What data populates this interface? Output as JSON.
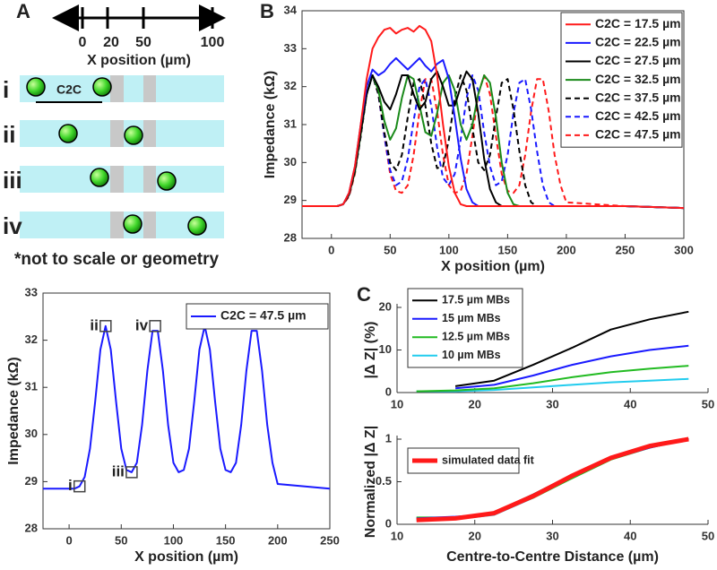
{
  "panel_labels": [
    "A",
    "B",
    "C"
  ],
  "diagram": {
    "axis_ticks": [
      "0",
      "20",
      "50",
      "100"
    ],
    "axis_label": "X position (µm)",
    "rows": [
      "i",
      "ii",
      "iii",
      "iv"
    ],
    "c2c_label": "C2C",
    "footnote": "*not to scale or geometry"
  },
  "chart_data": [
    {
      "type": "line",
      "xlabel": "X position (µm)",
      "ylabel": "Impedance (kΩ)",
      "xlim": [
        -25,
        300
      ],
      "ylim": [
        28,
        34
      ],
      "xticks": [
        0,
        50,
        100,
        150,
        200,
        250,
        300
      ],
      "yticks": [
        28,
        29,
        30,
        31,
        32,
        33,
        34
      ],
      "legend": "upper right",
      "x": [
        -25,
        -10,
        0,
        5,
        10,
        15,
        20,
        25,
        30,
        35,
        40,
        45,
        50,
        55,
        60,
        65,
        70,
        75,
        80,
        85,
        90,
        95,
        100,
        105,
        110,
        115,
        120,
        125,
        130,
        135,
        140,
        145,
        150,
        155,
        160,
        165,
        170,
        175,
        180,
        185,
        190,
        195,
        200,
        250,
        300
      ],
      "series": [
        {
          "name": "C2C = 17.5 µm",
          "color": "#ff1a1a",
          "linestyle": "solid",
          "values": [
            28.85,
            28.85,
            28.85,
            28.85,
            28.9,
            29.2,
            29.9,
            31.0,
            32.2,
            33.0,
            33.3,
            33.5,
            33.55,
            33.4,
            33.5,
            33.55,
            33.45,
            33.6,
            33.5,
            33.2,
            32.3,
            31.0,
            29.9,
            29.2,
            28.9,
            28.85,
            28.85,
            28.85,
            28.85,
            28.85,
            28.85,
            28.85,
            28.85,
            28.85,
            28.85,
            28.85,
            28.85,
            28.85,
            28.85,
            28.85,
            28.85,
            28.85,
            28.85,
            28.85,
            28.8
          ]
        },
        {
          "name": "C2C = 22.5 µm",
          "color": "#1a1aff",
          "linestyle": "solid",
          "values": [
            28.85,
            28.85,
            28.85,
            28.85,
            28.9,
            29.2,
            29.9,
            31.0,
            32.0,
            32.45,
            32.3,
            32.4,
            32.6,
            32.75,
            32.6,
            32.45,
            32.6,
            32.75,
            32.55,
            32.4,
            32.6,
            32.7,
            32.2,
            31.2,
            30.1,
            29.3,
            28.95,
            28.85,
            28.85,
            28.85,
            28.85,
            28.85,
            28.85,
            28.85,
            28.85,
            28.85,
            28.85,
            28.85,
            28.85,
            28.85,
            28.85,
            28.85,
            28.85,
            28.85,
            28.8
          ]
        },
        {
          "name": "C2C = 27.5 µm",
          "color": "#000000",
          "linestyle": "solid",
          "values": [
            28.85,
            28.85,
            28.85,
            28.85,
            28.9,
            29.15,
            29.8,
            30.8,
            31.8,
            32.3,
            32.0,
            31.6,
            31.4,
            31.8,
            32.3,
            32.3,
            31.8,
            31.4,
            31.6,
            32.2,
            32.4,
            32.0,
            31.5,
            31.5,
            32.0,
            32.4,
            32.2,
            31.3,
            30.1,
            29.3,
            28.95,
            28.85,
            28.85,
            28.85,
            28.85,
            28.85,
            28.85,
            28.85,
            28.85,
            28.85,
            28.85,
            28.85,
            28.85,
            28.85,
            28.8
          ]
        },
        {
          "name": "C2C = 32.5 µm",
          "color": "#1a8a1a",
          "linestyle": "solid",
          "values": [
            28.85,
            28.85,
            28.85,
            28.85,
            28.9,
            29.15,
            29.75,
            30.75,
            31.8,
            32.3,
            31.9,
            31.1,
            30.6,
            30.9,
            31.7,
            32.3,
            32.2,
            31.5,
            30.8,
            30.7,
            31.3,
            32.1,
            32.3,
            31.9,
            31.0,
            30.6,
            31.0,
            31.8,
            32.3,
            32.1,
            31.2,
            30.0,
            29.2,
            28.9,
            28.85,
            28.85,
            28.85,
            28.85,
            28.85,
            28.85,
            28.85,
            28.85,
            28.85,
            28.85,
            28.8
          ]
        },
        {
          "name": "C2C = 37.5 µm",
          "color": "#000000",
          "linestyle": "dashed",
          "values": [
            28.85,
            28.85,
            28.85,
            28.85,
            28.9,
            29.15,
            29.75,
            30.7,
            31.8,
            32.3,
            31.8,
            30.8,
            30.0,
            29.8,
            30.2,
            31.2,
            32.1,
            32.2,
            31.5,
            30.5,
            29.85,
            29.9,
            30.6,
            31.7,
            32.3,
            31.9,
            30.9,
            30.0,
            29.8,
            30.2,
            31.2,
            32.1,
            32.2,
            31.4,
            30.3,
            29.4,
            28.95,
            28.85,
            28.85,
            28.85,
            28.85,
            28.85,
            28.85,
            28.85,
            28.8
          ]
        },
        {
          "name": "C2C = 42.5 µm",
          "color": "#1a1aff",
          "linestyle": "dashed",
          "values": [
            28.85,
            28.85,
            28.85,
            28.85,
            28.9,
            29.15,
            29.75,
            30.7,
            31.8,
            32.3,
            31.8,
            30.7,
            29.8,
            29.4,
            29.5,
            30.1,
            31.1,
            32.0,
            32.2,
            31.5,
            30.4,
            29.6,
            29.4,
            29.7,
            30.6,
            31.7,
            32.3,
            31.9,
            30.8,
            29.9,
            29.4,
            29.5,
            30.2,
            31.3,
            32.1,
            32.2,
            31.4,
            30.3,
            29.4,
            28.95,
            28.85,
            28.85,
            28.85,
            28.85,
            28.8
          ]
        },
        {
          "name": "C2C = 47.5 µm",
          "color": "#ff1a1a",
          "linestyle": "dashed",
          "values": [
            28.85,
            28.85,
            28.85,
            28.85,
            28.9,
            29.1,
            29.7,
            30.7,
            31.8,
            32.3,
            31.8,
            30.7,
            29.7,
            29.25,
            29.2,
            29.4,
            30.2,
            31.35,
            32.2,
            32.2,
            31.35,
            30.2,
            29.4,
            29.2,
            29.25,
            29.7,
            30.7,
            31.8,
            32.3,
            31.8,
            30.7,
            29.7,
            29.25,
            29.2,
            29.4,
            30.2,
            31.35,
            32.2,
            32.2,
            31.35,
            30.2,
            29.4,
            28.95,
            28.85,
            28.8
          ]
        }
      ]
    },
    {
      "type": "line",
      "xlabel": "X position (µm)",
      "ylabel": "Impedance (kΩ)",
      "xlim": [
        -25,
        250
      ],
      "ylim": [
        28,
        33
      ],
      "xticks": [
        0,
        50,
        100,
        150,
        200,
        250
      ],
      "yticks": [
        28,
        29,
        30,
        31,
        32,
        33
      ],
      "legend": "upper right",
      "x": [
        -25,
        -10,
        0,
        5,
        10,
        15,
        20,
        25,
        30,
        35,
        40,
        45,
        50,
        55,
        60,
        65,
        70,
        75,
        80,
        85,
        90,
        95,
        100,
        105,
        110,
        115,
        120,
        125,
        130,
        135,
        140,
        145,
        150,
        155,
        160,
        165,
        170,
        175,
        180,
        185,
        190,
        195,
        200,
        250
      ],
      "series": [
        {
          "name": "C2C = 47.5 µm",
          "color": "#1a1aff",
          "linestyle": "solid",
          "values": [
            28.85,
            28.85,
            28.85,
            28.85,
            28.9,
            29.1,
            29.7,
            30.7,
            31.8,
            32.3,
            31.8,
            30.7,
            29.7,
            29.25,
            29.2,
            29.4,
            30.2,
            31.35,
            32.2,
            32.2,
            31.35,
            30.2,
            29.4,
            29.2,
            29.25,
            29.7,
            30.7,
            31.8,
            32.3,
            31.8,
            30.7,
            29.7,
            29.25,
            29.2,
            29.4,
            30.2,
            31.35,
            32.2,
            32.2,
            31.35,
            30.2,
            29.4,
            28.95,
            28.85
          ]
        }
      ],
      "annotations": [
        {
          "text": "i",
          "x": 10,
          "y": 28.9
        },
        {
          "text": "ii",
          "x": 35,
          "y": 32.3
        },
        {
          "text": "iii",
          "x": 60,
          "y": 29.2
        },
        {
          "text": "iv",
          "x": 82.5,
          "y": 32.3
        }
      ]
    },
    {
      "type": "line",
      "ylabel": "|Δ Z| (%)",
      "xlim": [
        10,
        50
      ],
      "ylim": [
        0,
        20
      ],
      "xticks": [
        10,
        20,
        30,
        40,
        50
      ],
      "yticks": [
        0,
        10,
        20
      ],
      "legend": "upper left",
      "x": [
        12.5,
        17.5,
        22.5,
        27.5,
        32.5,
        37.5,
        42.5,
        47.5
      ],
      "series": [
        {
          "name": "17.5 µm MBs",
          "color": "#000000",
          "linestyle": "solid",
          "values": [
            null,
            1.5,
            2.8,
            6.5,
            10.5,
            14.8,
            17.2,
            19.0
          ]
        },
        {
          "name": "15 µm MBs",
          "color": "#1a1aff",
          "linestyle": "solid",
          "values": [
            null,
            1.0,
            1.8,
            4.0,
            6.5,
            8.5,
            10.0,
            11.0
          ]
        },
        {
          "name": "12.5 µm MBs",
          "color": "#22bb22",
          "linestyle": "solid",
          "values": [
            0.3,
            0.5,
            1.0,
            2.2,
            3.6,
            4.8,
            5.6,
            6.3
          ]
        },
        {
          "name": "10 µm MBs",
          "color": "#22ccee",
          "linestyle": "solid",
          "values": [
            0.3,
            0.3,
            0.6,
            1.2,
            1.8,
            2.4,
            2.8,
            3.2
          ]
        }
      ]
    },
    {
      "type": "line",
      "xlabel": "Centre-to-Centre Distance (µm)",
      "ylabel": "Normalized |Δ Z|",
      "xlim": [
        10,
        50
      ],
      "ylim": [
        0,
        1
      ],
      "xticks": [
        10,
        20,
        30,
        40,
        50
      ],
      "yticks": [
        0,
        0.5,
        1
      ],
      "legend": "upper left",
      "x": [
        12.5,
        17.5,
        22.5,
        27.5,
        32.5,
        37.5,
        42.5,
        47.5
      ],
      "series": [
        {
          "name": "simulated data fit",
          "color": "#ff1a1a",
          "linestyle": "solid",
          "linewidth": 5,
          "values": [
            0.05,
            0.07,
            0.13,
            0.33,
            0.57,
            0.78,
            0.92,
            1.0
          ]
        },
        {
          "color": "#000000",
          "linestyle": "solid",
          "values": [
            null,
            0.08,
            0.14,
            0.35,
            0.58,
            0.78,
            0.91,
            1.0
          ]
        },
        {
          "color": "#1a1aff",
          "linestyle": "solid",
          "values": [
            0.07,
            0.09,
            0.12,
            0.32,
            0.56,
            0.77,
            0.9,
            1.0
          ]
        },
        {
          "color": "#22bb22",
          "linestyle": "solid",
          "values": [
            0.08,
            0.08,
            0.13,
            0.31,
            0.54,
            0.76,
            0.9,
            1.0
          ]
        },
        {
          "color": "#22ccee",
          "linestyle": "solid",
          "values": [
            0.05,
            0.06,
            0.11,
            0.31,
            0.58,
            0.79,
            0.92,
            1.0
          ]
        }
      ]
    }
  ]
}
